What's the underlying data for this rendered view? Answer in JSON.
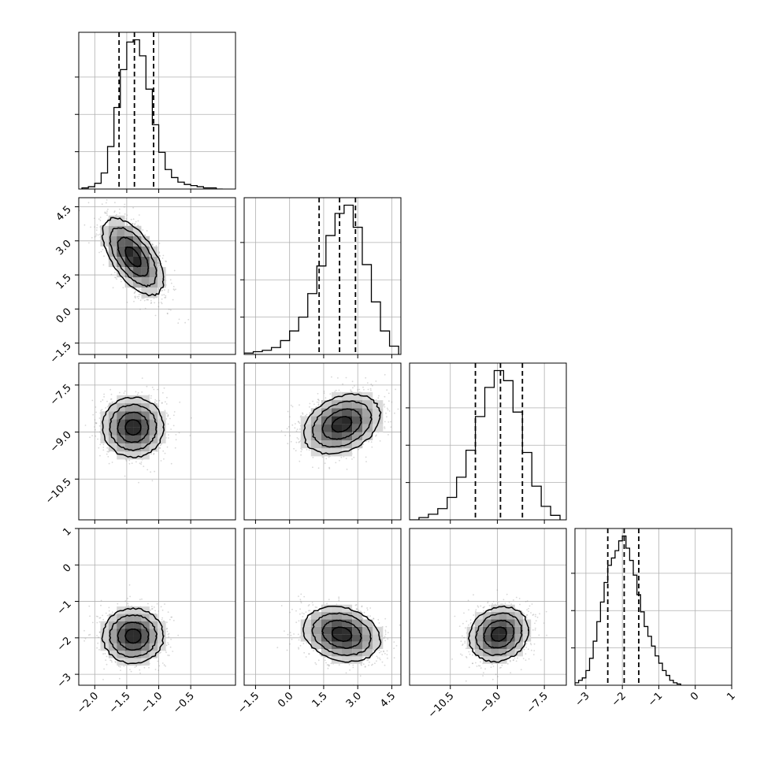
{
  "chart_data": {
    "type": "corner",
    "parameters": 4,
    "grid": true,
    "colors": {
      "hist": "#000000",
      "density": "#000000",
      "points": "#8c8c8c",
      "quantile_line": "#000000",
      "grid": "#b0b0b0"
    },
    "ranges": [
      [
        -2.25,
        0.2
      ],
      [
        -2.0,
        4.9
      ],
      [
        -11.8,
        -6.8
      ],
      [
        -3.3,
        1.0
      ]
    ],
    "ticks": [
      {
        "values": [
          -2.0,
          -1.5,
          -1.0,
          -0.5
        ],
        "labels": [
          "−2.0",
          "−1.5",
          "−1.0",
          "−0.5"
        ]
      },
      {
        "values": [
          -1.5,
          0.0,
          1.5,
          3.0,
          4.5
        ],
        "labels": [
          "−1.5",
          "0.0",
          "1.5",
          "3.0",
          "4.5"
        ]
      },
      {
        "values": [
          -10.5,
          -9.0,
          -7.5
        ],
        "labels": [
          "−10.5",
          "−9.0",
          "−7.5"
        ]
      },
      {
        "values": [
          -3,
          -2,
          -1,
          0,
          1
        ],
        "labels": [
          "−3",
          "−2",
          "−1",
          "0",
          "1"
        ]
      }
    ],
    "marginals": [
      {
        "quantiles": [
          -1.62,
          -1.38,
          -1.08
        ],
        "bin_edges": [
          -2.2,
          -2.1,
          -2.0,
          -1.9,
          -1.8,
          -1.7,
          -1.6,
          -1.5,
          -1.4,
          -1.3,
          -1.2,
          -1.1,
          -1.0,
          -0.9,
          -0.8,
          -0.7,
          -0.6,
          -0.5,
          -0.4,
          -0.3,
          -0.2,
          -0.1,
          0.0
        ],
        "counts": [
          1,
          2,
          5,
          14,
          37,
          71,
          104,
          128,
          130,
          116,
          87,
          56,
          32,
          17,
          10,
          6,
          4,
          3,
          2,
          1,
          1,
          0
        ]
      },
      {
        "quantiles": [
          1.3,
          2.2,
          2.9
        ],
        "bin_edges": [
          -2.0,
          -1.6,
          -1.2,
          -0.8,
          -0.4,
          0.0,
          0.4,
          0.8,
          1.2,
          1.6,
          2.0,
          2.4,
          2.8,
          3.2,
          3.6,
          4.0,
          4.4,
          4.8
        ],
        "counts": [
          1,
          2,
          3,
          5,
          10,
          17,
          27,
          44,
          64,
          86,
          102,
          108,
          92,
          65,
          38,
          17,
          6
        ]
      },
      {
        "quantiles": [
          -9.7,
          -8.9,
          -8.2
        ],
        "bin_edges": [
          -11.8,
          -11.5,
          -11.2,
          -10.9,
          -10.6,
          -10.3,
          -10.0,
          -9.7,
          -9.4,
          -9.1,
          -8.8,
          -8.5,
          -8.2,
          -7.9,
          -7.6,
          -7.3,
          -7.0
        ],
        "counts": [
          0,
          2,
          5,
          10,
          20,
          38,
          62,
          92,
          118,
          133,
          124,
          96,
          60,
          30,
          12,
          4
        ]
      },
      {
        "quantiles": [
          -2.4,
          -1.95,
          -1.55
        ],
        "bin_edges": [
          -3.3,
          -3.2,
          -3.1,
          -3.0,
          -2.9,
          -2.8,
          -2.7,
          -2.6,
          -2.5,
          -2.4,
          -2.3,
          -2.2,
          -2.1,
          -2.0,
          -1.9,
          -1.8,
          -1.7,
          -1.6,
          -1.5,
          -1.4,
          -1.3,
          -1.2,
          -1.1,
          -1.0,
          -0.9,
          -0.8,
          -0.7,
          -0.6,
          -0.5,
          -0.4
        ],
        "counts": [
          2,
          4,
          6,
          12,
          22,
          36,
          52,
          68,
          84,
          98,
          104,
          110,
          118,
          122,
          112,
          102,
          90,
          74,
          60,
          48,
          40,
          32,
          24,
          18,
          12,
          8,
          4,
          2,
          1
        ]
      }
    ],
    "joint": [
      {
        "row": 1,
        "col": 0,
        "mean": [
          -1.4,
          2.3
        ],
        "std": [
          0.24,
          0.85
        ],
        "corr": -0.6
      },
      {
        "row": 2,
        "col": 0,
        "mean": [
          -1.4,
          -8.85
        ],
        "std": [
          0.24,
          0.48
        ],
        "corr": 0.0
      },
      {
        "row": 2,
        "col": 1,
        "mean": [
          2.3,
          -8.75
        ],
        "std": [
          0.85,
          0.48
        ],
        "corr": 0.3
      },
      {
        "row": 3,
        "col": 0,
        "mean": [
          -1.4,
          -1.95
        ],
        "std": [
          0.24,
          0.38
        ],
        "corr": 0.0
      },
      {
        "row": 3,
        "col": 1,
        "mean": [
          2.3,
          -1.9
        ],
        "std": [
          0.85,
          0.38
        ],
        "corr": -0.2
      },
      {
        "row": 3,
        "col": 2,
        "mean": [
          -8.95,
          -1.9
        ],
        "std": [
          0.48,
          0.38
        ],
        "corr": 0.15
      }
    ],
    "density_levels": [
      0.12,
      0.39,
      0.68,
      0.86
    ]
  }
}
